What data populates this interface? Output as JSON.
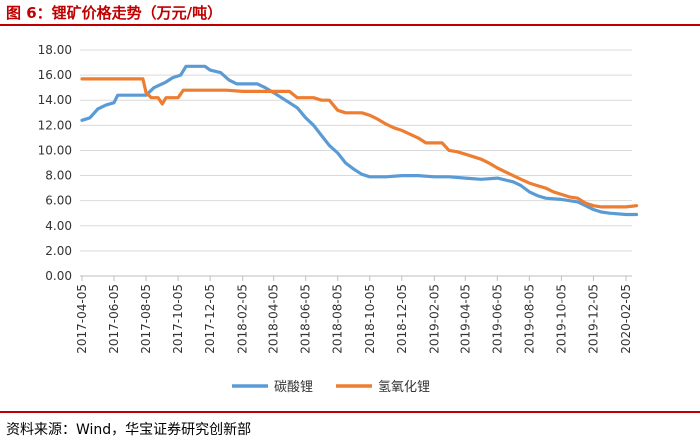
{
  "header": {
    "title": "图 6：锂矿价格走势（万元/吨）"
  },
  "footer": {
    "source": "资料来源：Wind，华宝证券研究创新部"
  },
  "chart_data": {
    "type": "line",
    "title": "",
    "xlabel": "",
    "ylabel": "",
    "ylim": [
      0,
      18
    ],
    "yticks": [
      "0.00",
      "2.00",
      "4.00",
      "6.00",
      "8.00",
      "10.00",
      "12.00",
      "14.00",
      "16.00",
      "18.00"
    ],
    "xticks": [
      "2017-04-05",
      "2017-06-05",
      "2017-08-05",
      "2017-10-05",
      "2017-12-05",
      "2018-02-05",
      "2018-04-05",
      "2018-06-05",
      "2018-08-05",
      "2018-10-05",
      "2018-12-05",
      "2019-02-05",
      "2019-04-05",
      "2019-06-05",
      "2019-08-05",
      "2019-10-05",
      "2019-12-05",
      "2020-02-05"
    ],
    "grid": true,
    "legend_position": "bottom",
    "series": [
      {
        "name": "碳酸锂",
        "color": "#5b9bd5",
        "points": [
          [
            "2017-04-05",
            12.4
          ],
          [
            "2017-04-20",
            12.6
          ],
          [
            "2017-05-05",
            13.3
          ],
          [
            "2017-05-20",
            13.6
          ],
          [
            "2017-06-05",
            13.8
          ],
          [
            "2017-06-12",
            14.4
          ],
          [
            "2017-07-05",
            14.4
          ],
          [
            "2017-08-05",
            14.4
          ],
          [
            "2017-08-20",
            15.0
          ],
          [
            "2017-09-10",
            15.4
          ],
          [
            "2017-09-25",
            15.8
          ],
          [
            "2017-10-10",
            16.0
          ],
          [
            "2017-10-20",
            16.7
          ],
          [
            "2017-11-10",
            16.7
          ],
          [
            "2017-11-25",
            16.7
          ],
          [
            "2017-12-05",
            16.4
          ],
          [
            "2017-12-25",
            16.2
          ],
          [
            "2018-01-10",
            15.6
          ],
          [
            "2018-01-25",
            15.3
          ],
          [
            "2018-02-20",
            15.3
          ],
          [
            "2018-03-05",
            15.3
          ],
          [
            "2018-03-20",
            15.0
          ],
          [
            "2018-04-05",
            14.6
          ],
          [
            "2018-04-20",
            14.2
          ],
          [
            "2018-05-05",
            13.8
          ],
          [
            "2018-05-20",
            13.4
          ],
          [
            "2018-06-05",
            12.6
          ],
          [
            "2018-06-20",
            12.0
          ],
          [
            "2018-07-05",
            11.2
          ],
          [
            "2018-07-20",
            10.4
          ],
          [
            "2018-08-05",
            9.8
          ],
          [
            "2018-08-20",
            9.0
          ],
          [
            "2018-09-05",
            8.5
          ],
          [
            "2018-09-20",
            8.1
          ],
          [
            "2018-10-05",
            7.9
          ],
          [
            "2018-11-05",
            7.9
          ],
          [
            "2018-12-05",
            8.0
          ],
          [
            "2019-01-05",
            8.0
          ],
          [
            "2019-02-05",
            7.9
          ],
          [
            "2019-03-05",
            7.9
          ],
          [
            "2019-04-05",
            7.8
          ],
          [
            "2019-05-05",
            7.7
          ],
          [
            "2019-06-05",
            7.8
          ],
          [
            "2019-07-05",
            7.5
          ],
          [
            "2019-07-20",
            7.2
          ],
          [
            "2019-08-05",
            6.7
          ],
          [
            "2019-08-20",
            6.4
          ],
          [
            "2019-09-05",
            6.2
          ],
          [
            "2019-10-05",
            6.1
          ],
          [
            "2019-11-05",
            5.9
          ],
          [
            "2019-11-20",
            5.6
          ],
          [
            "2019-12-05",
            5.3
          ],
          [
            "2019-12-20",
            5.1
          ],
          [
            "2020-01-05",
            5.0
          ],
          [
            "2020-02-05",
            4.9
          ],
          [
            "2020-02-25",
            4.9
          ]
        ]
      },
      {
        "name": "氢氧化锂",
        "color": "#ed7d31",
        "points": [
          [
            "2017-04-05",
            15.7
          ],
          [
            "2017-05-05",
            15.7
          ],
          [
            "2017-06-05",
            15.7
          ],
          [
            "2017-07-05",
            15.7
          ],
          [
            "2017-07-30",
            15.7
          ],
          [
            "2017-08-05",
            14.6
          ],
          [
            "2017-08-15",
            14.2
          ],
          [
            "2017-08-28",
            14.2
          ],
          [
            "2017-09-05",
            13.7
          ],
          [
            "2017-09-12",
            14.2
          ],
          [
            "2017-10-05",
            14.2
          ],
          [
            "2017-10-15",
            14.8
          ],
          [
            "2017-11-05",
            14.8
          ],
          [
            "2017-12-05",
            14.8
          ],
          [
            "2018-01-05",
            14.8
          ],
          [
            "2018-02-05",
            14.7
          ],
          [
            "2018-03-05",
            14.7
          ],
          [
            "2018-04-05",
            14.7
          ],
          [
            "2018-05-05",
            14.7
          ],
          [
            "2018-05-20",
            14.2
          ],
          [
            "2018-06-20",
            14.2
          ],
          [
            "2018-07-05",
            14.0
          ],
          [
            "2018-07-20",
            14.0
          ],
          [
            "2018-08-05",
            13.2
          ],
          [
            "2018-08-20",
            13.0
          ],
          [
            "2018-09-05",
            13.0
          ],
          [
            "2018-09-20",
            13.0
          ],
          [
            "2018-10-05",
            12.8
          ],
          [
            "2018-10-20",
            12.5
          ],
          [
            "2018-11-05",
            12.1
          ],
          [
            "2018-11-20",
            11.8
          ],
          [
            "2018-12-05",
            11.6
          ],
          [
            "2018-12-20",
            11.3
          ],
          [
            "2019-01-05",
            11.0
          ],
          [
            "2019-01-20",
            10.6
          ],
          [
            "2019-02-20",
            10.6
          ],
          [
            "2019-03-05",
            10.0
          ],
          [
            "2019-03-20",
            9.9
          ],
          [
            "2019-04-05",
            9.7
          ],
          [
            "2019-04-20",
            9.5
          ],
          [
            "2019-05-05",
            9.3
          ],
          [
            "2019-05-20",
            9.0
          ],
          [
            "2019-06-05",
            8.6
          ],
          [
            "2019-06-20",
            8.3
          ],
          [
            "2019-07-05",
            8.0
          ],
          [
            "2019-07-20",
            7.7
          ],
          [
            "2019-08-05",
            7.4
          ],
          [
            "2019-08-20",
            7.2
          ],
          [
            "2019-09-05",
            7.0
          ],
          [
            "2019-09-20",
            6.7
          ],
          [
            "2019-10-05",
            6.5
          ],
          [
            "2019-10-20",
            6.3
          ],
          [
            "2019-11-05",
            6.2
          ],
          [
            "2019-11-20",
            5.8
          ],
          [
            "2019-12-05",
            5.6
          ],
          [
            "2019-12-20",
            5.5
          ],
          [
            "2020-01-05",
            5.5
          ],
          [
            "2020-02-05",
            5.5
          ],
          [
            "2020-02-25",
            5.6
          ]
        ]
      }
    ]
  }
}
